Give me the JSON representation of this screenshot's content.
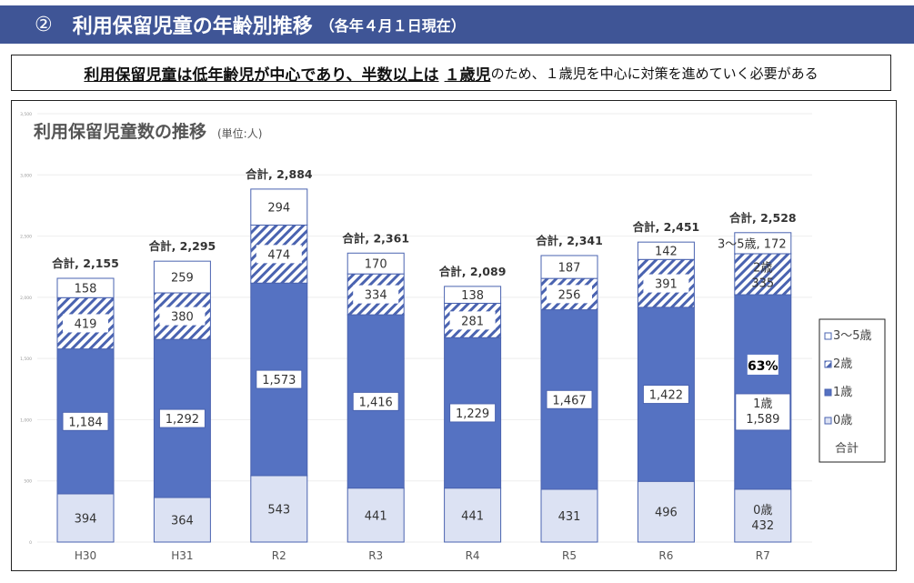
{
  "header": {
    "number": "②",
    "title": "利用保留児童の年齢別推移",
    "subtitle": "（各年４月１日現在）"
  },
  "summary": {
    "emphasis_1": "利用保留児童は低年齢児が中心であり、半数以上は",
    "emphasis_2": "１歳児",
    "rest": "のため、１歳児を中心に対策を進めていく必要がある"
  },
  "chart_data": {
    "type": "bar",
    "stacked": true,
    "title": "利用保留児童数の推移",
    "unit": "(単位:人)",
    "categories": [
      "H30",
      "H31",
      "R2",
      "R3",
      "R4",
      "R5",
      "R6",
      "R7"
    ],
    "series": [
      {
        "name": "0歳",
        "values": [
          394,
          364,
          543,
          441,
          441,
          431,
          496,
          432
        ],
        "color": "#dce2f3"
      },
      {
        "name": "1歳",
        "values": [
          1184,
          1292,
          1573,
          1416,
          1229,
          1467,
          1422,
          1589
        ],
        "color": "#5572c2"
      },
      {
        "name": "2歳",
        "values": [
          419,
          380,
          474,
          334,
          281,
          256,
          391,
          335
        ],
        "color": "#4a63b0",
        "pattern": "hatch"
      },
      {
        "name": "3～5歳",
        "values": [
          158,
          259,
          294,
          170,
          138,
          187,
          142,
          172
        ],
        "color": "#ffffff"
      }
    ],
    "totals": [
      2155,
      2295,
      2884,
      2361,
      2089,
      2341,
      2451,
      2528
    ],
    "total_label": "合計",
    "ylim": [
      0,
      3500
    ],
    "yticks": [
      "0",
      "500",
      "1,000",
      "1,500",
      "2,000",
      "2,500",
      "3,000",
      "3,500"
    ],
    "grid": true,
    "legend_position": "right",
    "legend": [
      "3～5歳",
      "2歳",
      "1歳",
      "0歳",
      "合計"
    ],
    "annotation": "63%"
  }
}
